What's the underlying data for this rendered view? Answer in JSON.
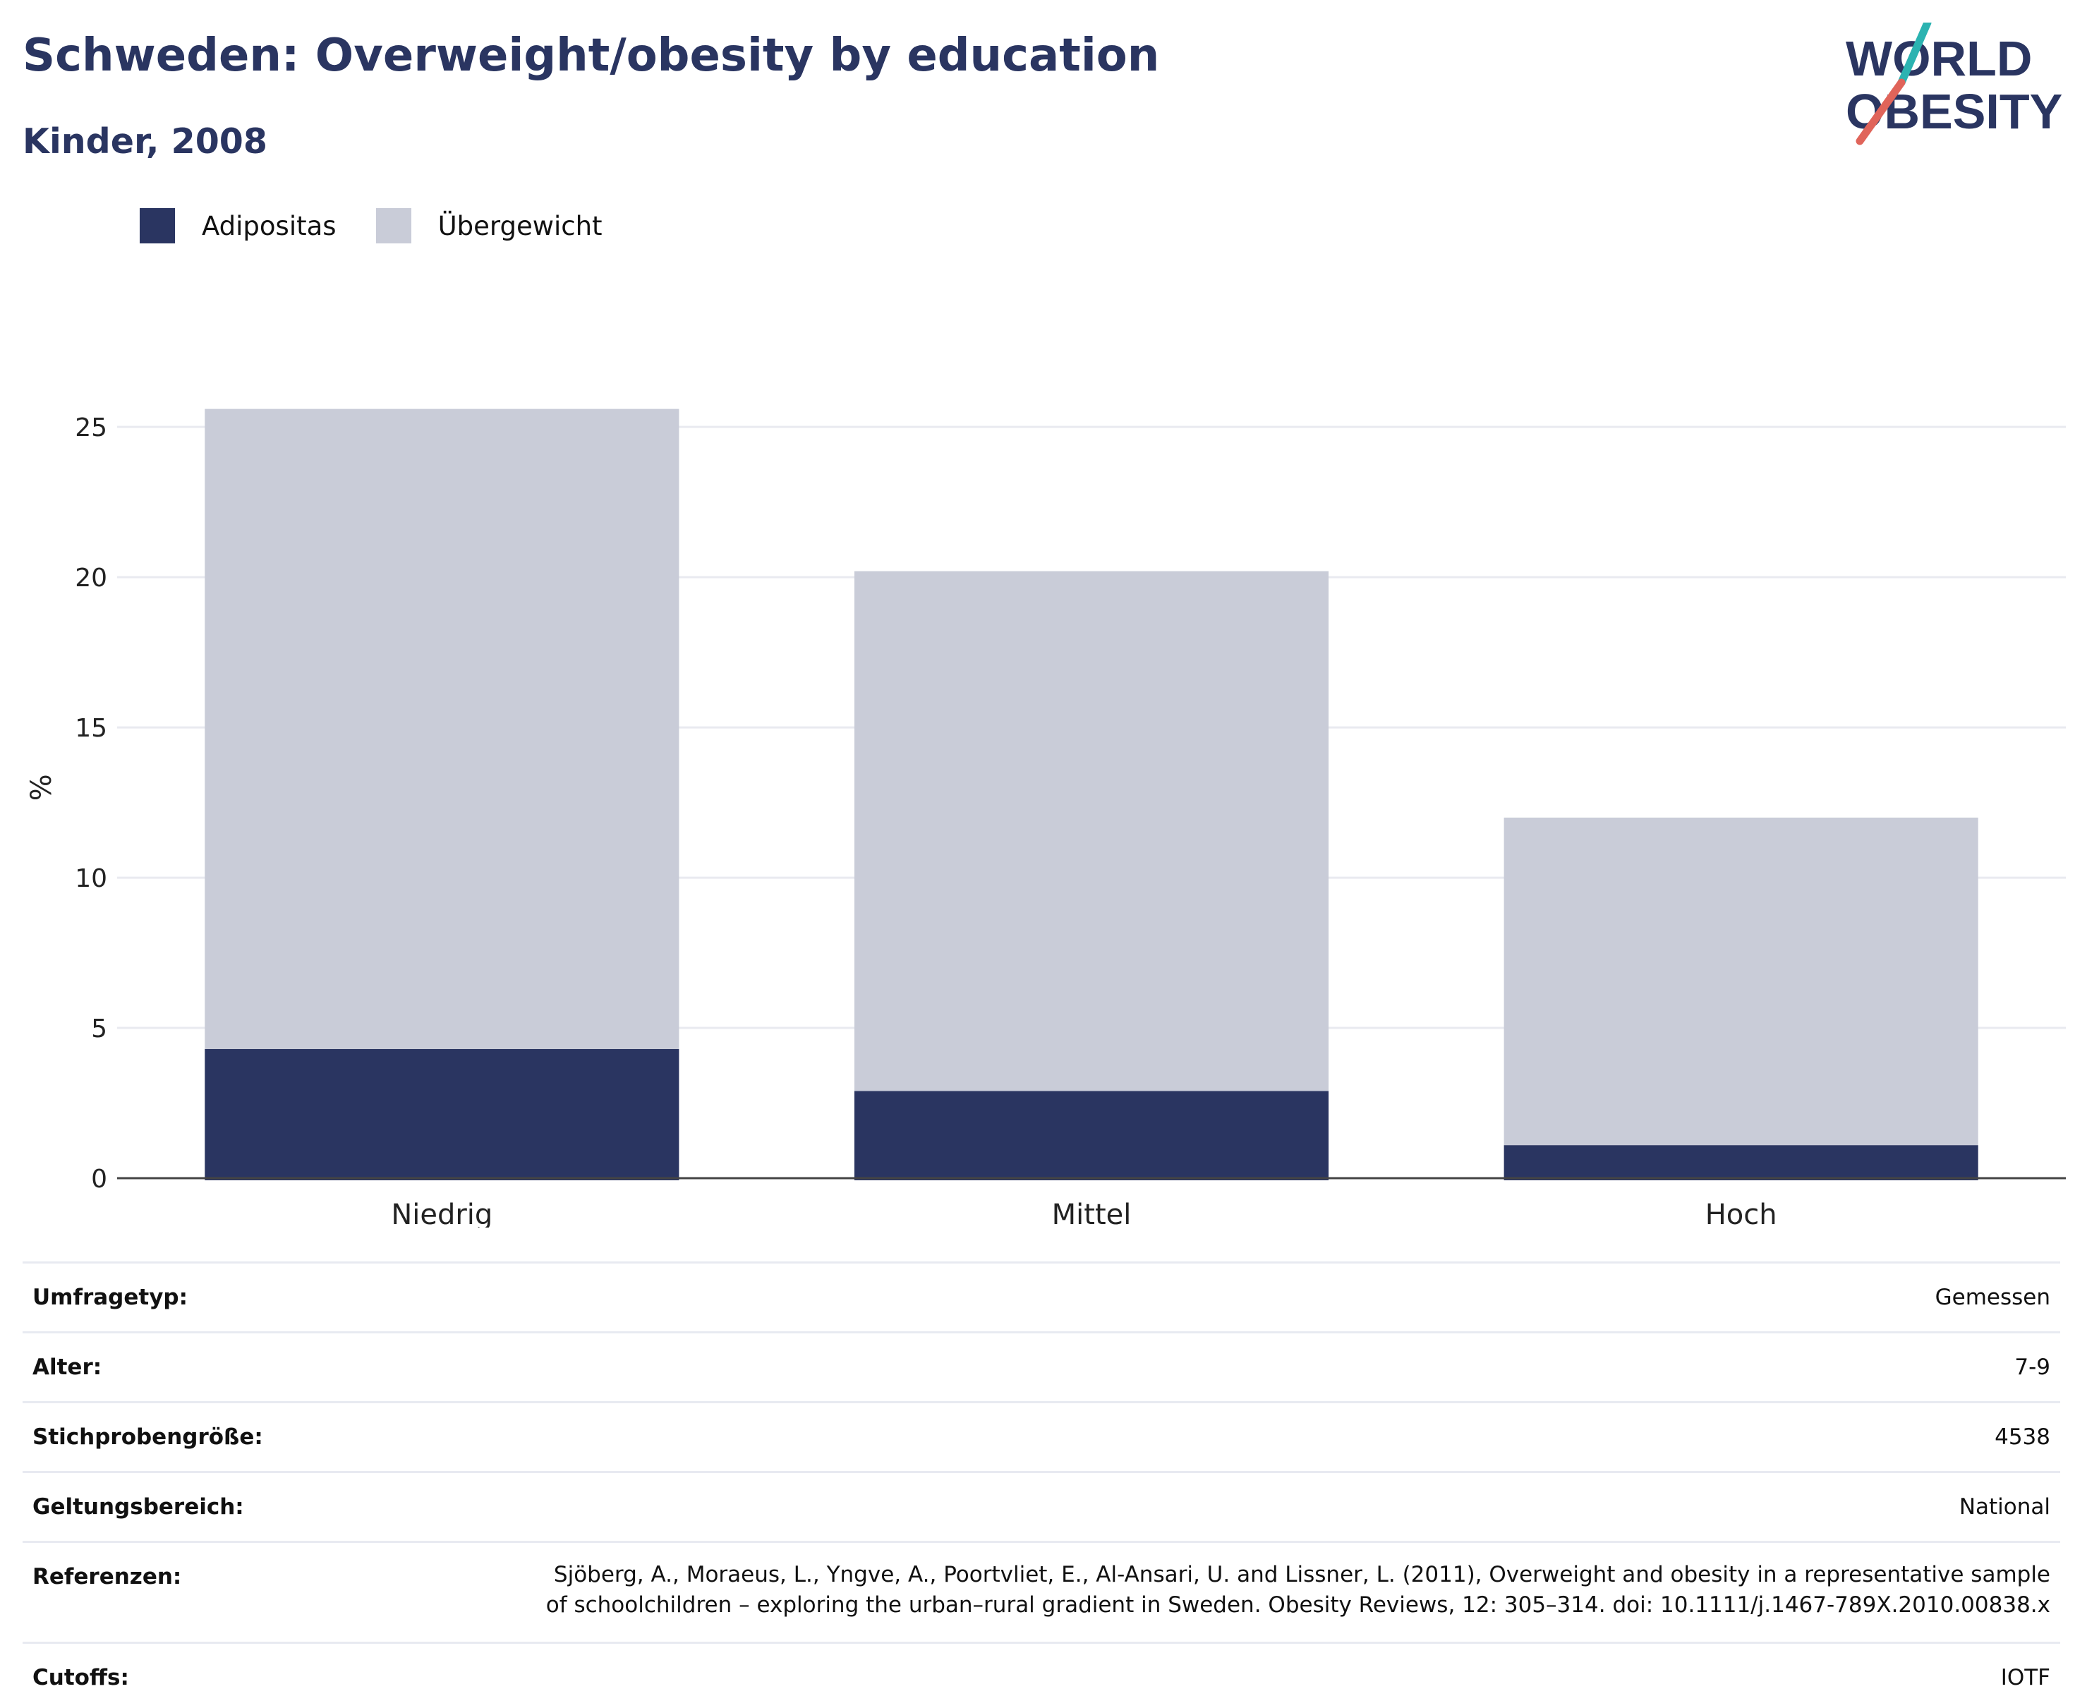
{
  "header": {
    "title": "Schweden: Overweight/obesity by education",
    "subtitle": "Kinder, 2008"
  },
  "logo": {
    "line1": "WORLD",
    "line2": "OBESITY",
    "colors": {
      "text": "#2a3561",
      "slash_top": "#2bb3b1",
      "slash_bottom": "#e0645a"
    }
  },
  "legend": [
    {
      "label": "Adipositas",
      "color": "#2a3561"
    },
    {
      "label": "Übergewicht",
      "color": "#c9ccd8"
    }
  ],
  "chart_data": {
    "type": "bar",
    "stacked": true,
    "categories": [
      "Niedrig",
      "Mittel",
      "Hoch"
    ],
    "series": [
      {
        "name": "Adipositas",
        "values": [
          4.3,
          2.9,
          1.1
        ],
        "color": "#2a3561"
      },
      {
        "name": "Übergewicht",
        "values": [
          21.3,
          17.3,
          10.9
        ],
        "color": "#c9ccd8"
      }
    ],
    "title": "Schweden: Overweight/obesity by education",
    "subtitle": "Kinder, 2008",
    "xlabel": "",
    "ylabel": "%",
    "ylim": [
      0,
      27
    ],
    "yticks": [
      0,
      5,
      10,
      15,
      20,
      25
    ],
    "grid": true,
    "legend_position": "top-left"
  },
  "info": [
    {
      "label": "Umfragetyp:",
      "value": "Gemessen"
    },
    {
      "label": "Alter:",
      "value": "7-9"
    },
    {
      "label": "Stichprobengröße:",
      "value": "4538"
    },
    {
      "label": "Geltungsbereich:",
      "value": "National"
    },
    {
      "label": "Referenzen:",
      "value": "Sjöberg, A., Moraeus, L., Yngve, A., Poortvliet, E., Al-Ansari, U. and Lissner, L. (2011), Overweight and obesity in a representative sample of schoolchildren – exploring the urban–rural gradient in Sweden. Obesity Reviews, 12: 305–314. doi: 10.1111/j.1467-789X.2010.00838.x"
    },
    {
      "label": "Cutoffs:",
      "value": "IOTF"
    }
  ]
}
